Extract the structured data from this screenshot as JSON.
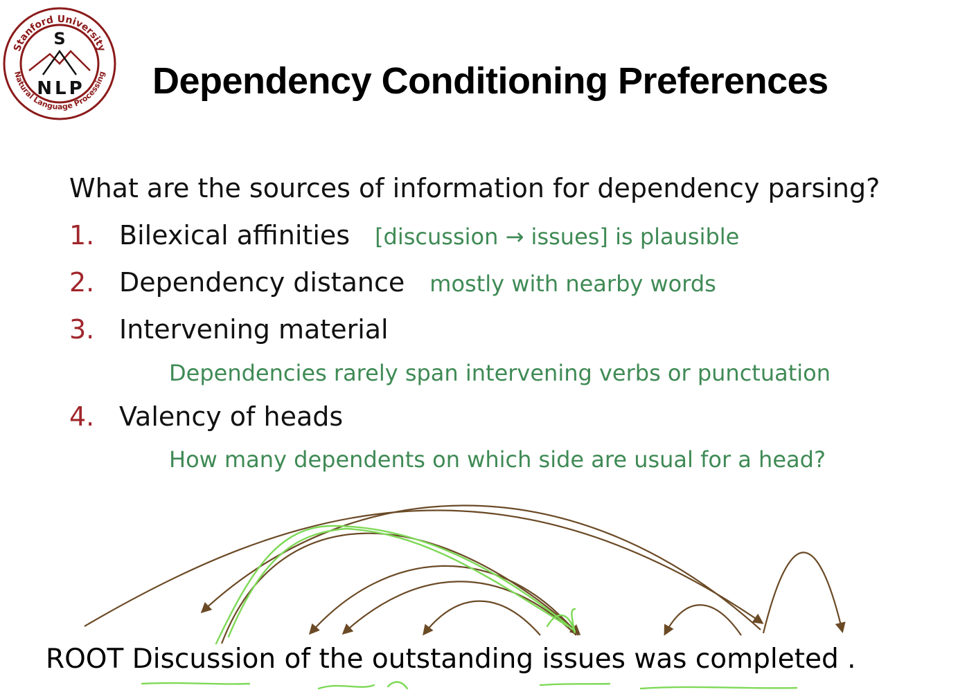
{
  "logo": {
    "top_text": "Stanford University",
    "letter_top": "S",
    "letters": "NLP",
    "ring_text": "Natural Language Processing",
    "colors": {
      "ring": "#8b1a1a",
      "inner": "#8b1a1a"
    }
  },
  "slide": {
    "title": "Dependency Conditioning Preferences",
    "question": "What are the sources of information for dependency parsing?",
    "items": [
      {
        "num": "1.",
        "label": "Bilexical affinities",
        "note": "[discussion → issues] is plausible"
      },
      {
        "num": "2.",
        "label": "Dependency distance",
        "note": "mostly with nearby words"
      },
      {
        "num": "3.",
        "label": "Intervening material",
        "note": ""
      },
      {
        "num": "4.",
        "label": "Valency of heads",
        "note": ""
      }
    ],
    "item3_subnote": "Dependencies rarely span intervening verbs or punctuation",
    "item4_subnote": "How many dependents on which side are usual for a head?",
    "sentence": "ROOT Discussion of the outstanding issues was completed  .",
    "colors": {
      "number": "#a0262c",
      "note": "#3f8a55",
      "arc": "#6b4a26",
      "annotation": "#7ed957"
    }
  }
}
